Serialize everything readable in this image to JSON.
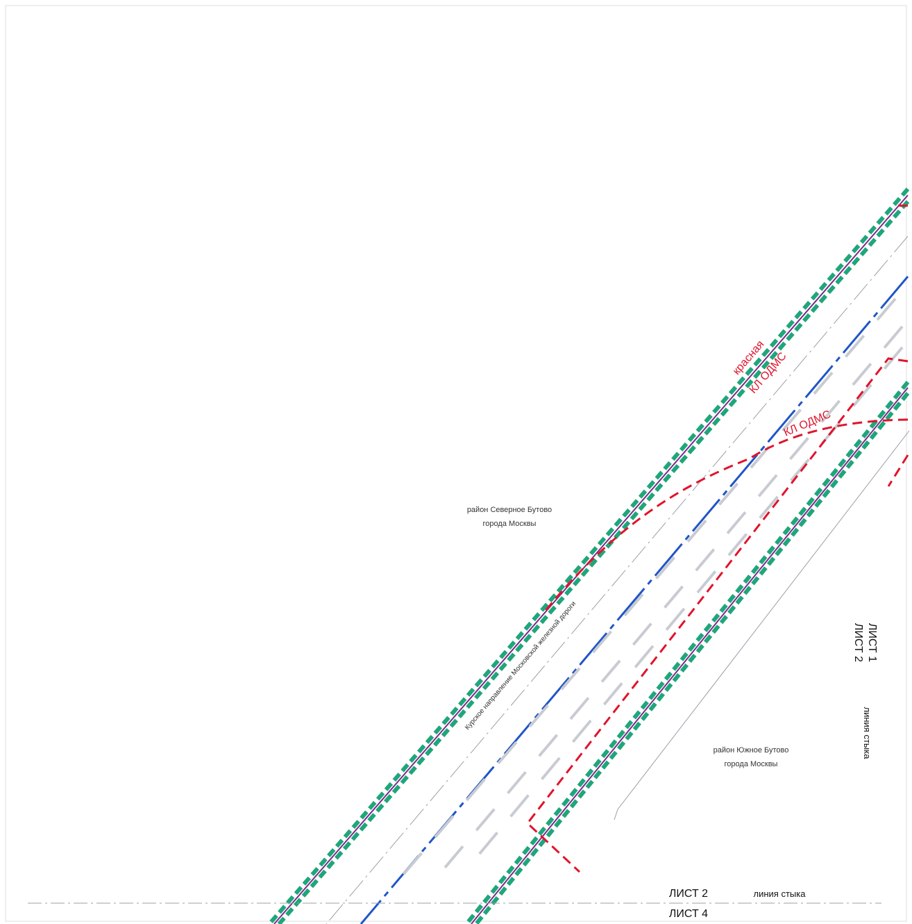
{
  "map": {
    "district_north": {
      "line1": "район Северное Бутово",
      "line2": "города Москвы"
    },
    "district_south": {
      "line1": "район Южное Бутово",
      "line2": "города Москвы"
    },
    "railway_label": "Курское направление Московской железной дороги",
    "red_line_label": "красная",
    "cable_labels": [
      "КЛ ОДМС",
      "КЛ ОДМС"
    ],
    "sheet_right": {
      "sheet_a": "ЛИСТ 1",
      "sheet_b": "ЛИСТ 2",
      "joint": "линия стыка"
    },
    "sheet_bottom": {
      "sheet_a": "ЛИСТ 2",
      "sheet_b": "ЛИСТ 4",
      "joint": "линия стыка"
    }
  },
  "colors": {
    "red_line": "#e0142c",
    "green_dash": "#1fa67a",
    "purple_line": "#7a2a8a",
    "blue_axis": "#1f55c8",
    "gray_track": "#c8cbd2",
    "thin_gray": "#9aa0a6"
  }
}
